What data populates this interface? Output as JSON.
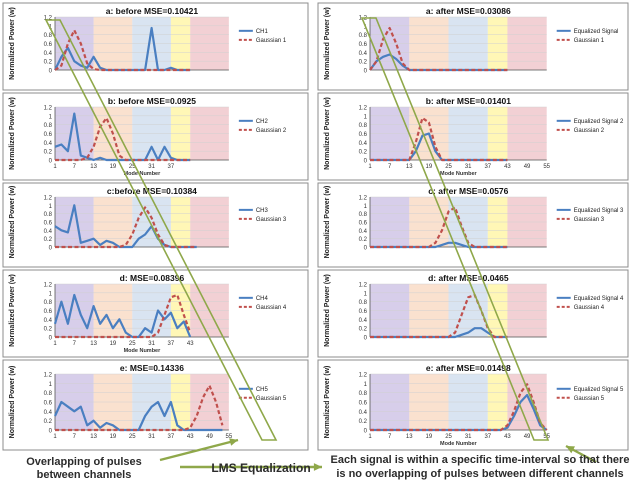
{
  "captions": {
    "left": "Overlapping of pulses between channels",
    "middle": "LMS Equalization",
    "right": "Each signal is within a specific time-interval so that there is no overlapping of  pulses between different channels"
  },
  "colors": {
    "signal": "#4a7fc1",
    "gaussian": "#c0504d",
    "bands": [
      "#b7a6d8",
      "#f6c8a8",
      "#b9cde6",
      "#fff07a",
      "#e8aab0"
    ],
    "overlay": "#8fa84a",
    "arrow": "#8fa84a"
  },
  "chart_data": [
    {
      "type": "line",
      "title": "a: before  MSE=0.10421",
      "ylabel": "Normalized Power (w)",
      "xlabel": "",
      "x": [
        1,
        3,
        5,
        7,
        9,
        11,
        13,
        15,
        17,
        19,
        21,
        23,
        25,
        27,
        29,
        31,
        33,
        35,
        37,
        39,
        41,
        43
      ],
      "series": [
        {
          "name": "CH1",
          "values": [
            0.0,
            0.3,
            0.5,
            0.2,
            0.1,
            0.05,
            0.3,
            0.05,
            0.0,
            0.0,
            0.0,
            0.0,
            0.0,
            0.0,
            0.0,
            0.95,
            0.0,
            0.0,
            0.05,
            0.0,
            0.0,
            0.0
          ]
        },
        {
          "name": "Gaussian 1",
          "values": [
            0.0,
            0.1,
            0.6,
            0.9,
            0.6,
            0.15,
            0.02,
            0.0,
            0.0,
            0.0,
            0.0,
            0.0,
            0.0,
            0.0,
            0.0,
            0.0,
            0.0,
            0.0,
            0.0,
            0.0,
            0.0,
            0.0
          ]
        }
      ],
      "ylim": [
        0,
        1.2
      ],
      "yticks": [
        "0",
        "0.2",
        "0.4",
        "0.6",
        "0.8",
        "1",
        "1.2"
      ],
      "xticks": []
    },
    {
      "type": "line",
      "title": "b: before MSE=0.0925",
      "ylabel": "Normalized Power (w)",
      "xlabel": "Mode Number",
      "x": [
        1,
        3,
        5,
        7,
        9,
        11,
        13,
        15,
        17,
        19,
        21,
        23,
        25,
        27,
        29,
        31,
        33,
        35,
        37,
        39,
        41,
        43
      ],
      "series": [
        {
          "name": "CH2",
          "values": [
            0.3,
            0.35,
            0.2,
            1.05,
            0.1,
            0.05,
            0.0,
            0.05,
            0.0,
            0.0,
            0.0,
            0.0,
            0.0,
            0.0,
            0.0,
            0.3,
            0.0,
            0.3,
            0.05,
            0.0,
            0.0,
            0.0
          ]
        },
        {
          "name": "Gaussian 2",
          "values": [
            0.0,
            0.0,
            0.0,
            0.0,
            0.0,
            0.05,
            0.3,
            0.75,
            0.95,
            0.6,
            0.1,
            0.0,
            0.0,
            0.0,
            0.0,
            0.0,
            0.0,
            0.0,
            0.0,
            0.0,
            0.0,
            0.0
          ]
        }
      ],
      "ylim": [
        0,
        1.2
      ],
      "yticks": [
        "0",
        "0.2",
        "0.4",
        "0.6",
        "0.8",
        "1",
        "1.2"
      ],
      "xticks": [
        "1",
        "7",
        "13",
        "19",
        "25",
        "31",
        "37"
      ]
    },
    {
      "type": "line",
      "title": "c:before MSE=0.10384",
      "ylabel": "Normalized Power (w)",
      "xlabel": "",
      "x": [
        1,
        3,
        5,
        7,
        9,
        11,
        13,
        15,
        17,
        19,
        21,
        23,
        25,
        27,
        29,
        31,
        33,
        35,
        37,
        39,
        41,
        43,
        45
      ],
      "series": [
        {
          "name": "CH3",
          "values": [
            0.5,
            0.4,
            0.35,
            1.0,
            0.1,
            0.15,
            0.2,
            0.05,
            0.15,
            0.1,
            0.0,
            0.0,
            0.0,
            0.2,
            0.3,
            0.5,
            0.2,
            0.05,
            0.0,
            0.0,
            0.0,
            0.0,
            0.0
          ]
        },
        {
          "name": "Gaussian 3",
          "values": [
            0.0,
            0.0,
            0.0,
            0.0,
            0.0,
            0.0,
            0.0,
            0.0,
            0.0,
            0.0,
            0.0,
            0.05,
            0.3,
            0.7,
            0.95,
            0.7,
            0.3,
            0.05,
            0.0,
            0.0,
            0.0,
            0.0,
            0.0
          ]
        }
      ],
      "ylim": [
        0,
        1.2
      ],
      "yticks": [
        "0",
        "0.2",
        "0.4",
        "0.6",
        "0.8",
        "1",
        "1.2"
      ],
      "xticks": []
    },
    {
      "type": "line",
      "title": "d: MSE=0.08396",
      "ylabel": "Normalized Power (w)",
      "xlabel": "Mode Number",
      "x": [
        1,
        3,
        5,
        7,
        9,
        11,
        13,
        15,
        17,
        19,
        21,
        23,
        25,
        27,
        29,
        31,
        33,
        35,
        37,
        39,
        41,
        43
      ],
      "series": [
        {
          "name": "CH4",
          "values": [
            0.3,
            0.8,
            0.3,
            0.95,
            0.5,
            0.2,
            0.7,
            0.3,
            0.5,
            0.2,
            0.4,
            0.1,
            0.0,
            0.0,
            0.2,
            0.1,
            0.6,
            0.4,
            0.55,
            0.2,
            0.35,
            0.0
          ]
        },
        {
          "name": "Gaussian 4",
          "values": [
            0.0,
            0.0,
            0.0,
            0.0,
            0.0,
            0.0,
            0.0,
            0.0,
            0.0,
            0.0,
            0.0,
            0.0,
            0.0,
            0.0,
            0.0,
            0.0,
            0.1,
            0.5,
            0.9,
            0.95,
            0.5,
            0.1
          ]
        }
      ],
      "ylim": [
        0,
        1.2
      ],
      "yticks": [
        "0",
        "0.2",
        "0.4",
        "0.6",
        "0.8",
        "1",
        "1.2"
      ],
      "xticks": [
        "1",
        "7",
        "13",
        "19",
        "25",
        "31",
        "37",
        "43"
      ]
    },
    {
      "type": "line",
      "title": "e: MSE=0.14336",
      "ylabel": "Normalized Power (w)",
      "xlabel": "",
      "x": [
        1,
        3,
        5,
        7,
        9,
        11,
        13,
        15,
        17,
        19,
        21,
        23,
        25,
        27,
        29,
        31,
        33,
        35,
        37,
        39,
        41,
        43,
        45,
        47,
        49,
        51,
        53
      ],
      "series": [
        {
          "name": "CH5",
          "values": [
            0.3,
            0.6,
            0.5,
            0.4,
            0.5,
            0.1,
            0.2,
            0.05,
            0.15,
            0.1,
            0.0,
            0.0,
            0.0,
            0.0,
            0.3,
            0.5,
            0.6,
            0.3,
            0.6,
            0.1,
            0.0,
            0.0,
            0.0,
            0.0,
            0.0,
            0.0,
            0.0
          ]
        },
        {
          "name": "Gaussian 5",
          "values": [
            0.0,
            0.0,
            0.0,
            0.0,
            0.0,
            0.0,
            0.0,
            0.0,
            0.0,
            0.0,
            0.0,
            0.0,
            0.0,
            0.0,
            0.0,
            0.0,
            0.0,
            0.0,
            0.0,
            0.0,
            0.0,
            0.05,
            0.3,
            0.7,
            0.95,
            0.6,
            0.1
          ]
        }
      ],
      "ylim": [
        0,
        1.2
      ],
      "yticks": [
        "0",
        "0.2",
        "0.4",
        "0.6",
        "0.8",
        "1",
        "1.2"
      ],
      "xticks": [
        "1",
        "7",
        "13",
        "19",
        "25",
        "31",
        "37",
        "43",
        "49",
        "55"
      ]
    },
    {
      "type": "line",
      "title": "a: after  MSE=0.03086",
      "ylabel": "Normalized Power (w)",
      "xlabel": "",
      "x": [
        1,
        3,
        5,
        7,
        9,
        11,
        13,
        15,
        17,
        19,
        21,
        23,
        25,
        27,
        29,
        31,
        33,
        35,
        37,
        39,
        41,
        43
      ],
      "series": [
        {
          "name": "Equalized Signal",
          "values": [
            0.0,
            0.2,
            0.3,
            0.35,
            0.25,
            0.1,
            0.0,
            0.0,
            0.0,
            0.0,
            0.0,
            0.0,
            0.0,
            0.0,
            0.0,
            0.0,
            0.0,
            0.0,
            0.0,
            0.0,
            0.0,
            0.0
          ]
        },
        {
          "name": "Gaussian 1",
          "values": [
            0.0,
            0.2,
            0.7,
            0.95,
            0.6,
            0.15,
            0.0,
            0.0,
            0.0,
            0.0,
            0.0,
            0.0,
            0.0,
            0.0,
            0.0,
            0.0,
            0.0,
            0.0,
            0.0,
            0.0,
            0.0,
            0.0
          ]
        }
      ],
      "ylim": [
        0,
        1.2
      ],
      "yticks": [
        "0",
        "0.2",
        "0.4",
        "0.6",
        "0.8",
        "1",
        "1.2"
      ],
      "xticks": []
    },
    {
      "type": "line",
      "title": "b: after MSE=0.01401",
      "ylabel": "Normalized Power (w)",
      "xlabel": "Mode Number",
      "x": [
        1,
        3,
        5,
        7,
        9,
        11,
        13,
        15,
        17,
        19,
        21,
        23,
        25,
        27,
        29,
        31,
        33,
        35,
        37,
        39,
        41,
        43
      ],
      "series": [
        {
          "name": "Equalized Signal 2",
          "values": [
            0.0,
            0.0,
            0.0,
            0.0,
            0.0,
            0.0,
            0.0,
            0.2,
            0.55,
            0.6,
            0.2,
            0.0,
            0.0,
            0.0,
            0.0,
            0.0,
            0.0,
            0.0,
            0.0,
            0.0,
            0.0,
            0.0
          ]
        },
        {
          "name": "Gaussian 2",
          "values": [
            0.0,
            0.0,
            0.0,
            0.0,
            0.0,
            0.0,
            0.0,
            0.4,
            0.95,
            0.85,
            0.3,
            0.0,
            0.0,
            0.0,
            0.0,
            0.0,
            0.0,
            0.0,
            0.0,
            0.0,
            0.0,
            0.0
          ]
        }
      ],
      "ylim": [
        0,
        1.2
      ],
      "yticks": [
        "0",
        "0.2",
        "0.4",
        "0.6",
        "0.8",
        "1",
        "1.2"
      ],
      "xticks": [
        "1",
        "7",
        "13",
        "19",
        "25",
        "31",
        "37",
        "43",
        "49",
        "55"
      ]
    },
    {
      "type": "line",
      "title": "c: after  MSE=0.0576",
      "ylabel": "Normalized Power (w)",
      "xlabel": "",
      "x": [
        1,
        3,
        5,
        7,
        9,
        11,
        13,
        15,
        17,
        19,
        21,
        23,
        25,
        27,
        29,
        31,
        33,
        35,
        37,
        39,
        41,
        43
      ],
      "series": [
        {
          "name": "Equalized Signal 3",
          "values": [
            0.0,
            0.0,
            0.0,
            0.0,
            0.0,
            0.0,
            0.0,
            0.0,
            0.0,
            0.0,
            0.0,
            0.05,
            0.1,
            0.1,
            0.05,
            0.0,
            0.0,
            0.0,
            0.0,
            0.0,
            0.0,
            0.0
          ]
        },
        {
          "name": "Gaussian 3",
          "values": [
            0.0,
            0.0,
            0.0,
            0.0,
            0.0,
            0.0,
            0.0,
            0.0,
            0.0,
            0.0,
            0.1,
            0.4,
            0.85,
            0.95,
            0.5,
            0.1,
            0.0,
            0.0,
            0.0,
            0.0,
            0.0,
            0.0
          ]
        }
      ],
      "ylim": [
        0,
        1.2
      ],
      "yticks": [
        "0",
        "0.2",
        "0.4",
        "0.6",
        "0.8",
        "1",
        "1.2"
      ],
      "xticks": []
    },
    {
      "type": "line",
      "title": "d: after MSE=0.0465",
      "ylabel": "Normalized Power (w)",
      "xlabel": "",
      "x": [
        1,
        3,
        5,
        7,
        9,
        11,
        13,
        15,
        17,
        19,
        21,
        23,
        25,
        27,
        29,
        31,
        33,
        35,
        37,
        39,
        41,
        43
      ],
      "series": [
        {
          "name": "Equalized Signal 4",
          "values": [
            0.0,
            0.0,
            0.0,
            0.0,
            0.0,
            0.0,
            0.0,
            0.0,
            0.0,
            0.0,
            0.0,
            0.0,
            0.0,
            0.0,
            0.05,
            0.1,
            0.2,
            0.2,
            0.1,
            0.0,
            0.0,
            0.0
          ]
        },
        {
          "name": "Gaussian 4",
          "values": [
            0.0,
            0.0,
            0.0,
            0.0,
            0.0,
            0.0,
            0.0,
            0.0,
            0.0,
            0.0,
            0.0,
            0.0,
            0.0,
            0.1,
            0.5,
            0.9,
            0.95,
            0.6,
            0.2,
            0.0,
            0.0,
            0.0
          ]
        }
      ],
      "ylim": [
        0,
        1.2
      ],
      "yticks": [
        "0",
        "0.2",
        "0.4",
        "0.6",
        "0.8",
        "1",
        "1.2"
      ],
      "xticks": []
    },
    {
      "type": "line",
      "title": "e: after MSE=0.01498",
      "ylabel": "Normalized Power (w)",
      "xlabel": "Mode Number",
      "x": [
        1,
        3,
        5,
        7,
        9,
        11,
        13,
        15,
        17,
        19,
        21,
        23,
        25,
        27,
        29,
        31,
        33,
        35,
        37,
        39,
        41,
        43,
        45,
        47,
        49,
        51,
        53,
        55
      ],
      "series": [
        {
          "name": "Equalized Signal 5",
          "values": [
            0.0,
            0.0,
            0.0,
            0.0,
            0.0,
            0.0,
            0.0,
            0.0,
            0.0,
            0.0,
            0.0,
            0.0,
            0.0,
            0.0,
            0.0,
            0.0,
            0.0,
            0.0,
            0.0,
            0.0,
            0.0,
            0.05,
            0.3,
            0.6,
            0.75,
            0.45,
            0.1,
            0.0
          ]
        },
        {
          "name": "Gaussian 5",
          "values": [
            0.0,
            0.0,
            0.0,
            0.0,
            0.0,
            0.0,
            0.0,
            0.0,
            0.0,
            0.0,
            0.0,
            0.0,
            0.0,
            0.0,
            0.0,
            0.0,
            0.0,
            0.0,
            0.0,
            0.0,
            0.0,
            0.1,
            0.4,
            0.8,
            0.98,
            0.6,
            0.15,
            0.0
          ]
        }
      ],
      "ylim": [
        0,
        1.2
      ],
      "yticks": [
        "0",
        "0.2",
        "0.4",
        "0.6",
        "0.8",
        "1",
        "1.2"
      ],
      "xticks": [
        "1",
        "7",
        "13",
        "19",
        "25",
        "31",
        "37",
        "43",
        "49",
        "55"
      ]
    }
  ]
}
